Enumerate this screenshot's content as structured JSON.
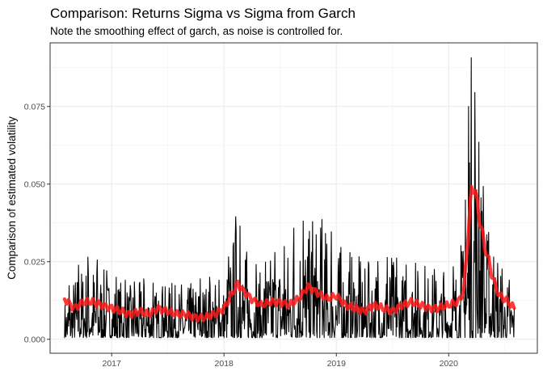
{
  "chart_data": {
    "type": "line",
    "title": "Comparison: Returns Sigma vs Sigma from Garch",
    "subtitle": "Note the smoothing effect of garch, as noise is controlled for.",
    "xlabel": "",
    "ylabel": "Comparison of estimated volatility",
    "x_axis": {
      "type": "date",
      "range": [
        "2016-06-15",
        "2020-10-15"
      ],
      "ticks": [
        "2017-01-01",
        "2018-01-01",
        "2019-01-01",
        "2020-01-01"
      ],
      "tick_labels": [
        "2017",
        "2018",
        "2019",
        "2020"
      ]
    },
    "y_axis": {
      "range": [
        -0.0045,
        0.0955
      ],
      "ticks": [
        0.0,
        0.025,
        0.05,
        0.075
      ],
      "tick_labels": [
        "0.000",
        "0.025",
        "0.050",
        "0.075"
      ]
    },
    "grid": true,
    "legend": "none",
    "series": [
      {
        "color": "#000000",
        "style": "thin-line",
        "points": [
          [
            "2016-08-01",
            0.013
          ],
          [
            "2016-09-01",
            0.022
          ],
          [
            "2016-10-01",
            0.026
          ],
          [
            "2016-11-01",
            0.027
          ],
          [
            "2016-12-01",
            0.024
          ],
          [
            "2017-01-01",
            0.02
          ],
          [
            "2017-02-01",
            0.02
          ],
          [
            "2017-03-01",
            0.018
          ],
          [
            "2017-04-01",
            0.019
          ],
          [
            "2017-05-01",
            0.02
          ],
          [
            "2017-06-01",
            0.016
          ],
          [
            "2017-07-01",
            0.018
          ],
          [
            "2017-08-01",
            0.018
          ],
          [
            "2017-09-01",
            0.017
          ],
          [
            "2017-10-01",
            0.019
          ],
          [
            "2017-11-01",
            0.02
          ],
          [
            "2017-12-01",
            0.02
          ],
          [
            "2018-01-01",
            0.018
          ],
          [
            "2018-02-01",
            0.036
          ],
          [
            "2018-02-15",
            0.043
          ],
          [
            "2018-03-01",
            0.03
          ],
          [
            "2018-04-01",
            0.026
          ],
          [
            "2018-05-01",
            0.022
          ],
          [
            "2018-06-01",
            0.028
          ],
          [
            "2018-07-01",
            0.028
          ],
          [
            "2018-08-01",
            0.032
          ],
          [
            "2018-09-01",
            0.04
          ],
          [
            "2018-10-01",
            0.036
          ],
          [
            "2018-11-01",
            0.04
          ],
          [
            "2018-12-01",
            0.037
          ],
          [
            "2019-01-01",
            0.032
          ],
          [
            "2019-02-01",
            0.027
          ],
          [
            "2019-03-01",
            0.029
          ],
          [
            "2019-04-01",
            0.024
          ],
          [
            "2019-05-01",
            0.026
          ],
          [
            "2019-06-01",
            0.024
          ],
          [
            "2019-07-01",
            0.029
          ],
          [
            "2019-08-01",
            0.023
          ],
          [
            "2019-09-01",
            0.025
          ],
          [
            "2019-10-01",
            0.024
          ],
          [
            "2019-11-01",
            0.023
          ],
          [
            "2019-12-01",
            0.022
          ],
          [
            "2020-01-01",
            0.021
          ],
          [
            "2020-02-01",
            0.026
          ],
          [
            "2020-02-20",
            0.035
          ],
          [
            "2020-03-01",
            0.058
          ],
          [
            "2020-03-10",
            0.092
          ],
          [
            "2020-03-20",
            0.089
          ],
          [
            "2020-04-01",
            0.07
          ],
          [
            "2020-04-15",
            0.057
          ],
          [
            "2020-05-01",
            0.04
          ],
          [
            "2020-05-20",
            0.028
          ],
          [
            "2020-06-01",
            0.025
          ],
          [
            "2020-06-15",
            0.024
          ],
          [
            "2020-07-01",
            0.021
          ],
          [
            "2020-08-01",
            0.017
          ]
        ]
      },
      {
        "color": "#ff1a1a",
        "style": "thick-line",
        "points": [
          [
            "2016-08-01",
            0.013
          ],
          [
            "2016-09-01",
            0.01
          ],
          [
            "2016-10-01",
            0.012
          ],
          [
            "2016-11-01",
            0.012
          ],
          [
            "2016-12-01",
            0.011
          ],
          [
            "2017-01-01",
            0.01
          ],
          [
            "2017-02-01",
            0.009
          ],
          [
            "2017-03-01",
            0.008
          ],
          [
            "2017-04-01",
            0.009
          ],
          [
            "2017-05-01",
            0.008
          ],
          [
            "2017-06-01",
            0.01
          ],
          [
            "2017-07-01",
            0.009
          ],
          [
            "2017-08-01",
            0.008
          ],
          [
            "2017-09-01",
            0.008
          ],
          [
            "2017-10-01",
            0.007
          ],
          [
            "2017-11-01",
            0.007
          ],
          [
            "2017-12-01",
            0.008
          ],
          [
            "2018-01-01",
            0.01
          ],
          [
            "2018-02-15",
            0.018
          ],
          [
            "2018-03-01",
            0.016
          ],
          [
            "2018-04-01",
            0.013
          ],
          [
            "2018-05-01",
            0.011
          ],
          [
            "2018-06-01",
            0.012
          ],
          [
            "2018-07-01",
            0.012
          ],
          [
            "2018-08-01",
            0.011
          ],
          [
            "2018-09-01",
            0.013
          ],
          [
            "2018-10-01",
            0.017
          ],
          [
            "2018-11-01",
            0.015
          ],
          [
            "2018-12-01",
            0.013
          ],
          [
            "2019-01-01",
            0.014
          ],
          [
            "2019-02-01",
            0.011
          ],
          [
            "2019-03-01",
            0.01
          ],
          [
            "2019-04-01",
            0.009
          ],
          [
            "2019-05-01",
            0.011
          ],
          [
            "2019-06-01",
            0.01
          ],
          [
            "2019-07-01",
            0.009
          ],
          [
            "2019-08-01",
            0.011
          ],
          [
            "2019-09-01",
            0.012
          ],
          [
            "2019-10-01",
            0.011
          ],
          [
            "2019-11-01",
            0.01
          ],
          [
            "2019-12-01",
            0.01
          ],
          [
            "2020-01-01",
            0.011
          ],
          [
            "2020-02-01",
            0.012
          ],
          [
            "2020-02-20",
            0.016
          ],
          [
            "2020-03-01",
            0.03
          ],
          [
            "2020-03-15",
            0.048
          ],
          [
            "2020-03-25",
            0.049
          ],
          [
            "2020-04-10",
            0.039
          ],
          [
            "2020-04-25",
            0.031
          ],
          [
            "2020-05-15",
            0.023
          ],
          [
            "2020-06-01",
            0.017
          ],
          [
            "2020-06-15",
            0.014
          ],
          [
            "2020-07-01",
            0.013
          ],
          [
            "2020-08-01",
            0.01
          ]
        ]
      }
    ]
  }
}
